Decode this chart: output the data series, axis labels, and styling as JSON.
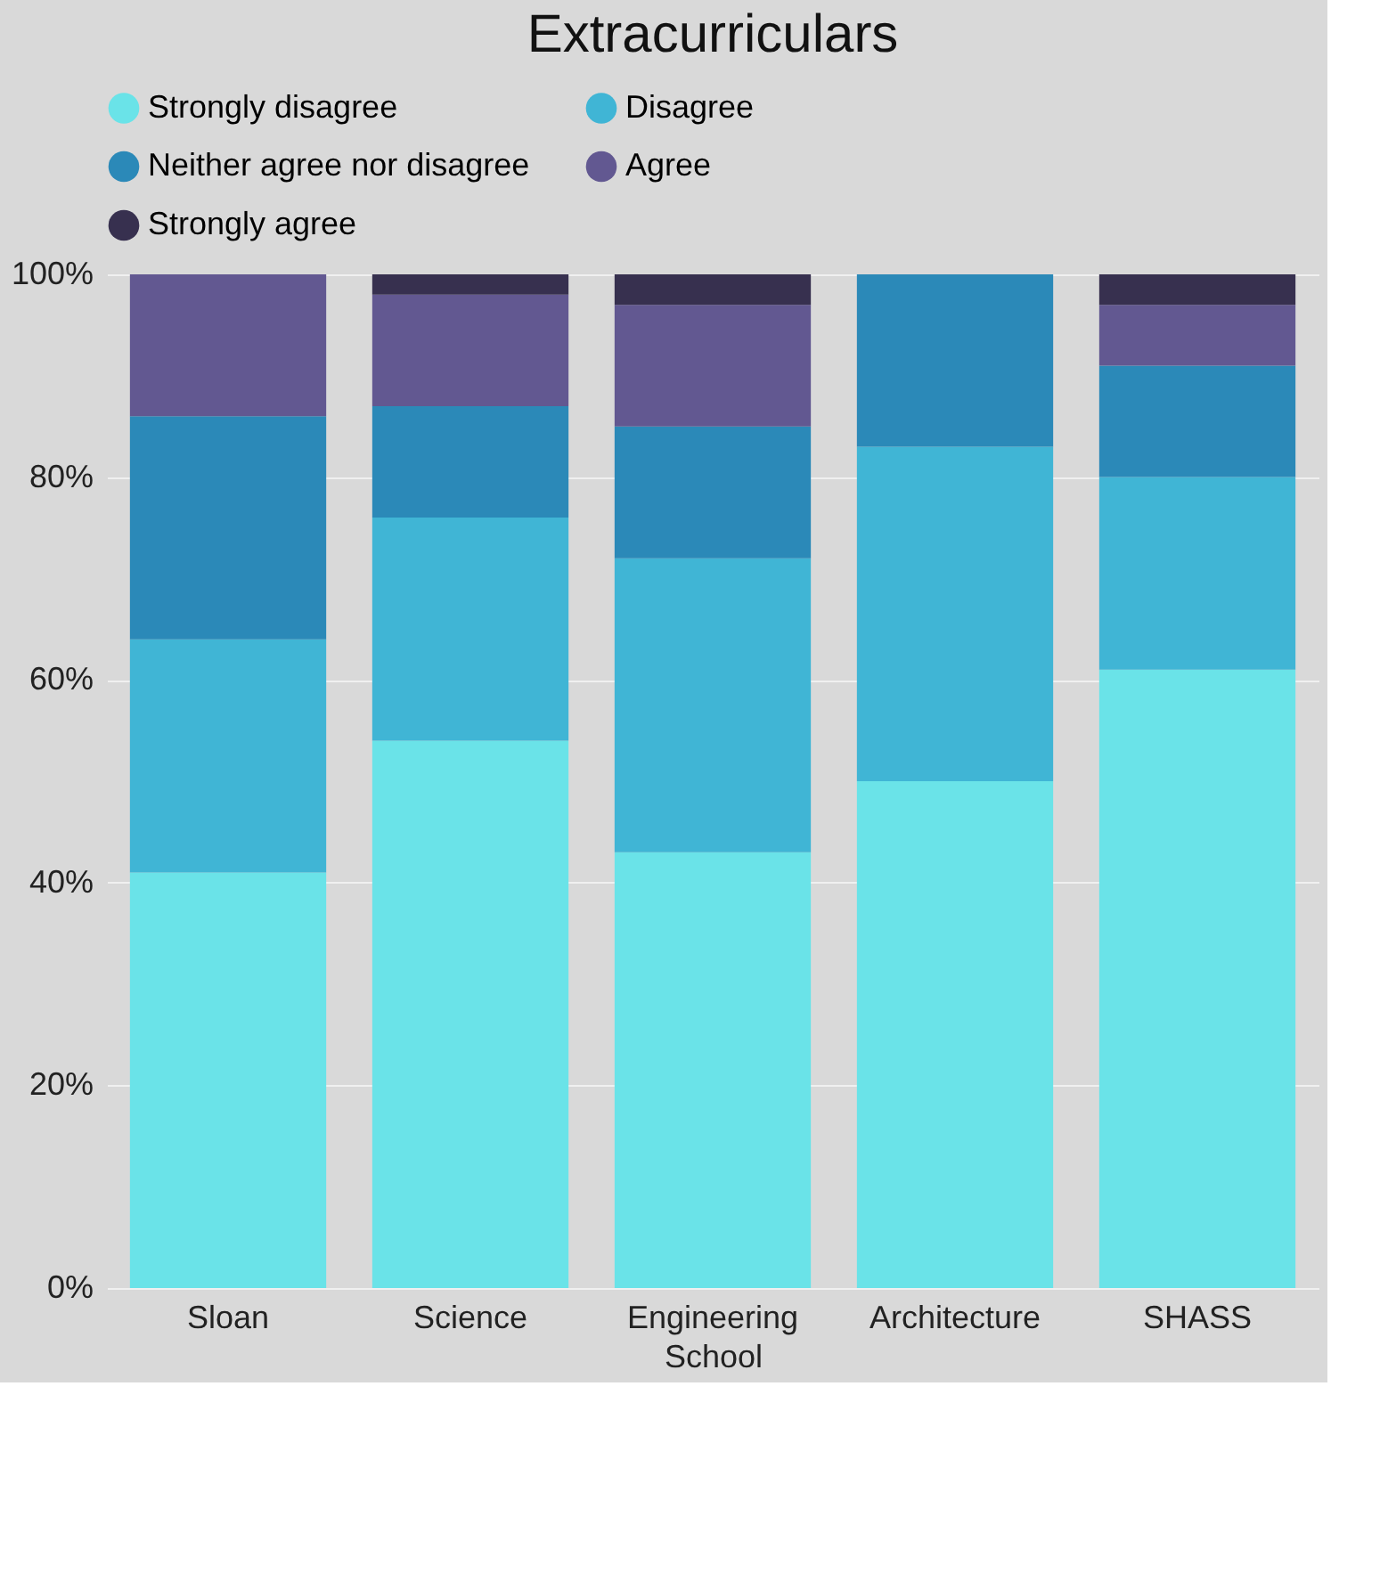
{
  "chart_data": {
    "type": "bar",
    "stacked": true,
    "title": "Extracurriculars",
    "xlabel": "School",
    "categories": [
      "Sloan",
      "Science",
      "Engineering",
      "Architecture",
      "SHASS"
    ],
    "series": [
      {
        "name": "Strongly disagree",
        "color": "#6ae3e8",
        "values": [
          41,
          54,
          43,
          50,
          61
        ]
      },
      {
        "name": "Disagree",
        "color": "#40b5d5",
        "values": [
          23,
          22,
          29,
          33,
          19
        ]
      },
      {
        "name": "Neither agree nor disagree",
        "color": "#2b89b8",
        "values": [
          22,
          11,
          13,
          17,
          11
        ]
      },
      {
        "name": "Agree",
        "color": "#625891",
        "values": [
          14,
          11,
          12,
          0,
          6
        ]
      },
      {
        "name": "Strongly agree",
        "color": "#37304f",
        "values": [
          0,
          2,
          3,
          0,
          3
        ]
      }
    ],
    "ylim": [
      0,
      100
    ],
    "yticks": [
      {
        "value": 0,
        "label": "0%"
      },
      {
        "value": 20,
        "label": "20%"
      },
      {
        "value": 40,
        "label": "40%"
      },
      {
        "value": 60,
        "label": "60%"
      },
      {
        "value": 80,
        "label": "80%"
      },
      {
        "value": 100,
        "label": "100%"
      }
    ],
    "grid": "y",
    "legend": "top"
  }
}
